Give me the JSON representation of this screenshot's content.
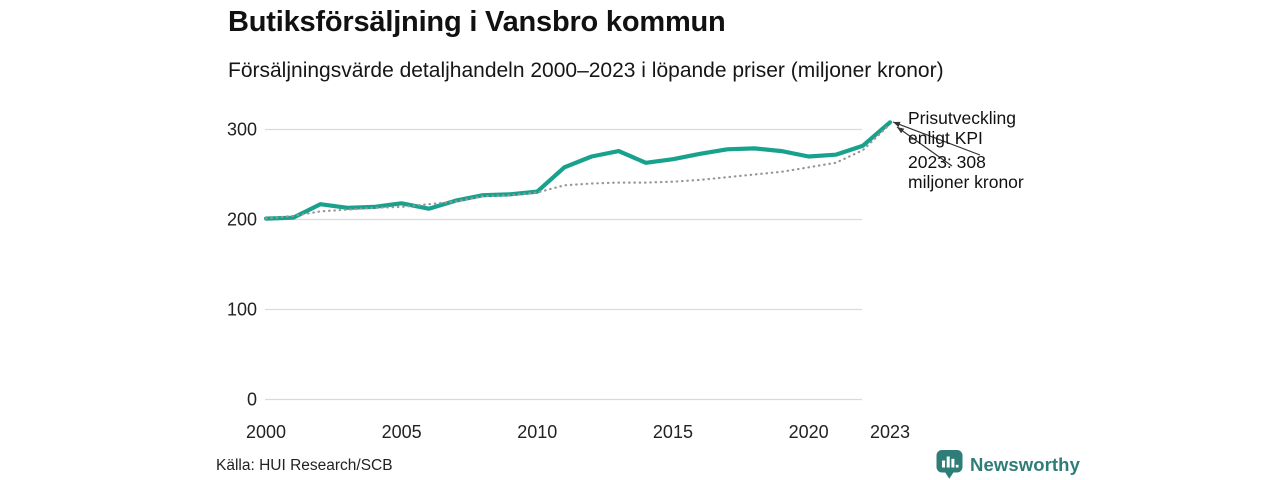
{
  "header": {
    "title": "Butiksförsäljning i Vansbro kommun",
    "subtitle": "Försäljningsvärde detaljhandeln 2000–2023 i löpande priser (miljoner kronor)"
  },
  "chart_data": {
    "type": "line",
    "x": [
      2000,
      2001,
      2002,
      2003,
      2004,
      2005,
      2006,
      2007,
      2008,
      2009,
      2010,
      2011,
      2012,
      2013,
      2014,
      2015,
      2016,
      2017,
      2018,
      2019,
      2020,
      2021,
      2022,
      2023
    ],
    "series": [
      {
        "name": "Butiksförsäljning i löpande priser",
        "style": "solid",
        "color": "#18a28e",
        "values": [
          201,
          202,
          217,
          213,
          214,
          218,
          212,
          221,
          227,
          228,
          231,
          258,
          270,
          276,
          263,
          267,
          273,
          278,
          279,
          276,
          270,
          272,
          282,
          308
        ]
      },
      {
        "name": "Prisutveckling enligt KPI",
        "style": "dotted",
        "color": "#979797",
        "values": [
          201,
          204,
          209,
          211,
          213,
          214,
          217,
          220,
          226,
          227,
          230,
          238,
          240,
          241,
          241,
          242,
          244,
          247,
          250,
          253,
          258,
          263,
          277,
          306
        ]
      }
    ],
    "xticks": [
      2000,
      2005,
      2010,
      2015,
      2020,
      2023
    ],
    "yticks": [
      0,
      100,
      200,
      300
    ],
    "ylim": [
      0,
      340
    ],
    "xlabel": "",
    "ylabel": "",
    "grid": "horizontal",
    "legend": "none",
    "end_value_2023": 308
  },
  "annotation": {
    "kpi_label_line1": "Prisutveckling",
    "kpi_label_line2": "enligt KPI",
    "value_label_line1": "2023: 308",
    "value_label_line2": "miljoner kronor"
  },
  "footer": {
    "source": "Källa: HUI Research/SCB",
    "brand": "Newsworthy"
  },
  "colors": {
    "sales_line": "#18a28e",
    "kpi_dotted_line": "#979797",
    "gridline": "#dadada",
    "annotation_arrow": "#333333",
    "brand_teal": "#2e7d78",
    "text": "#111111"
  }
}
